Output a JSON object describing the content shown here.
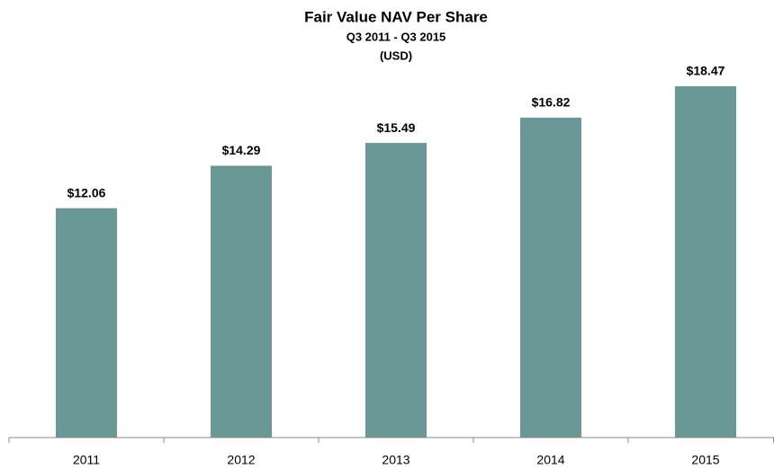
{
  "chart_data": {
    "type": "bar",
    "title": "Fair Value NAV Per Share",
    "subtitle": [
      "Q3 2011 - Q3 2015",
      "(USD)"
    ],
    "categories": [
      "2011",
      "2012",
      "2013",
      "2014",
      "2015"
    ],
    "values": [
      12.06,
      14.29,
      15.49,
      16.82,
      18.47
    ],
    "value_labels": [
      "$12.06",
      "$14.29",
      "$15.49",
      "$16.82",
      "$18.47"
    ],
    "color": "#6a9897"
  }
}
